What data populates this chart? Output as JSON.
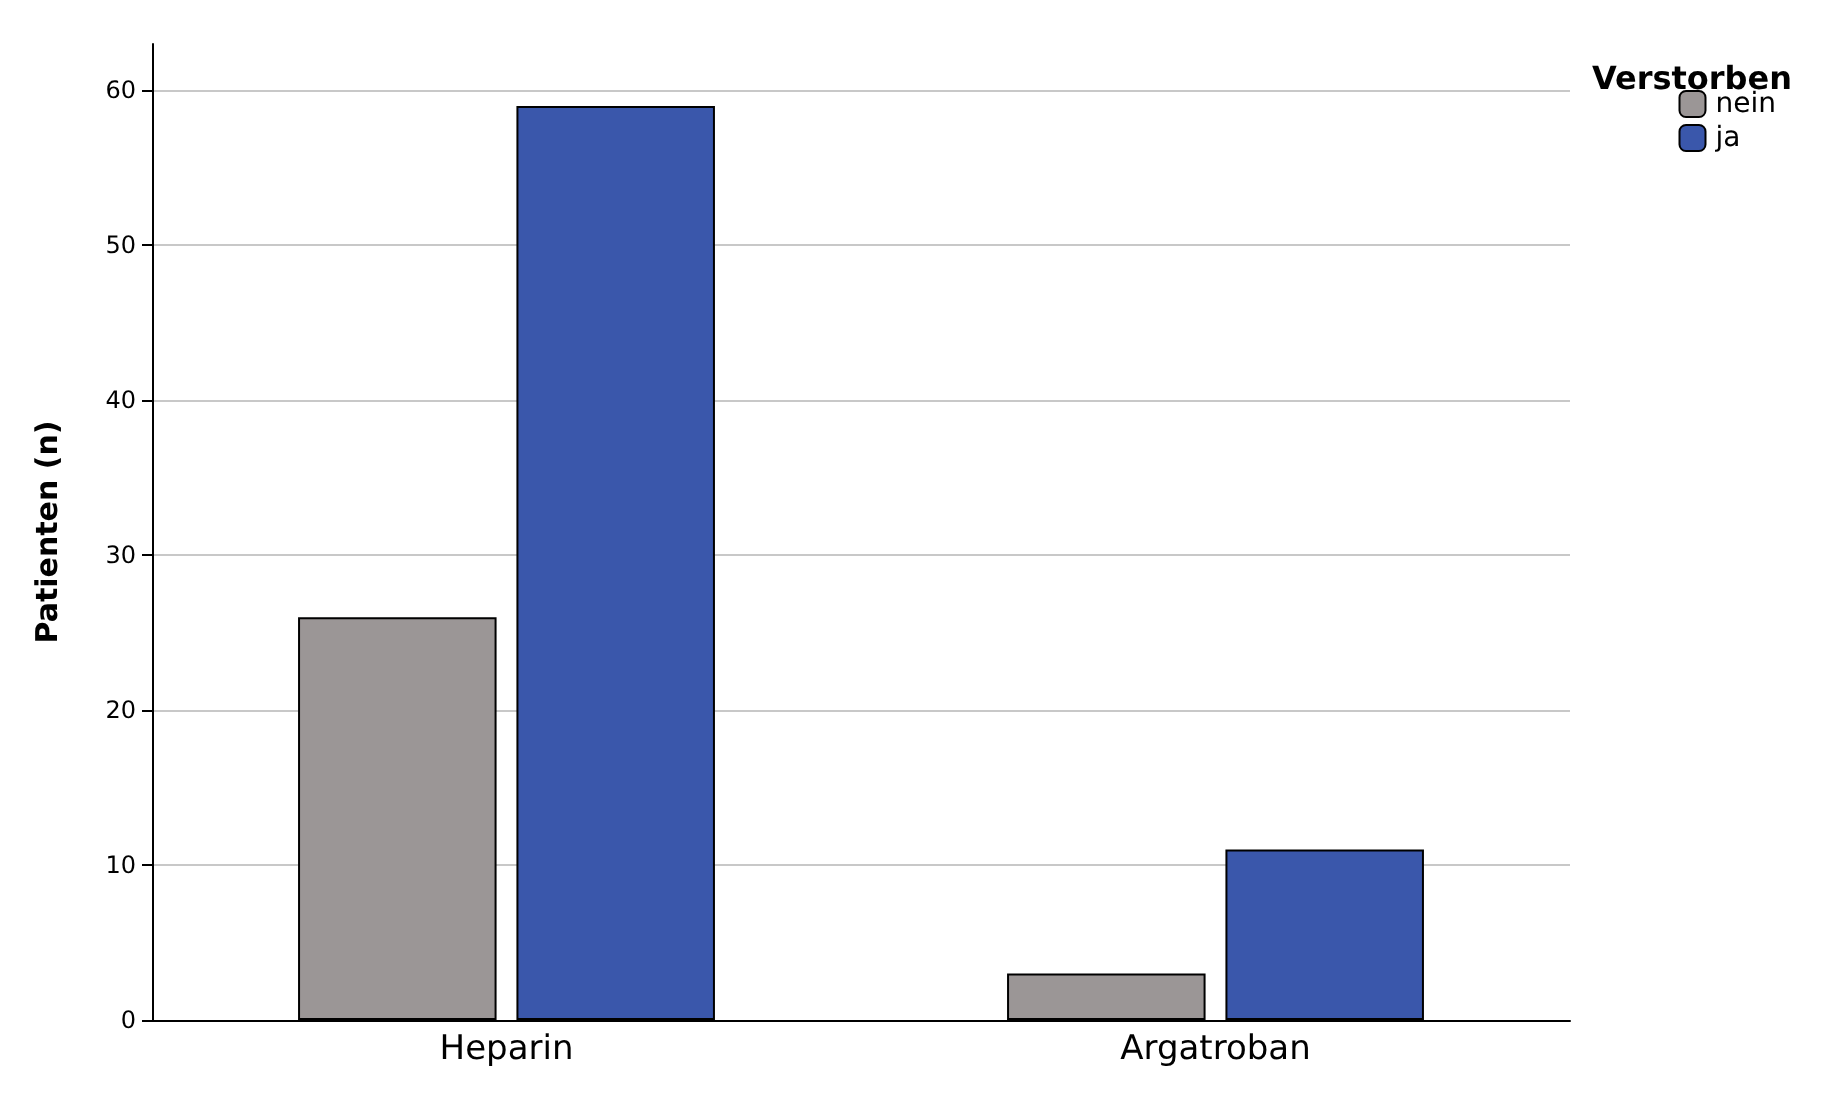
{
  "chart_data": {
    "type": "bar",
    "ylabel": "Patienten (n)",
    "legend_title": "Verstorben",
    "categories": [
      "Heparin",
      "Argatroban"
    ],
    "series": [
      {
        "name": "nein",
        "color": "#9b9696",
        "values": [
          26,
          3
        ]
      },
      {
        "name": "ja",
        "color": "#3a57ab",
        "values": [
          59,
          11
        ]
      }
    ],
    "ylim": [
      0,
      63
    ],
    "yticks": [
      0,
      10,
      20,
      30,
      40,
      50,
      60
    ],
    "grid": "y",
    "legend": "top right"
  }
}
